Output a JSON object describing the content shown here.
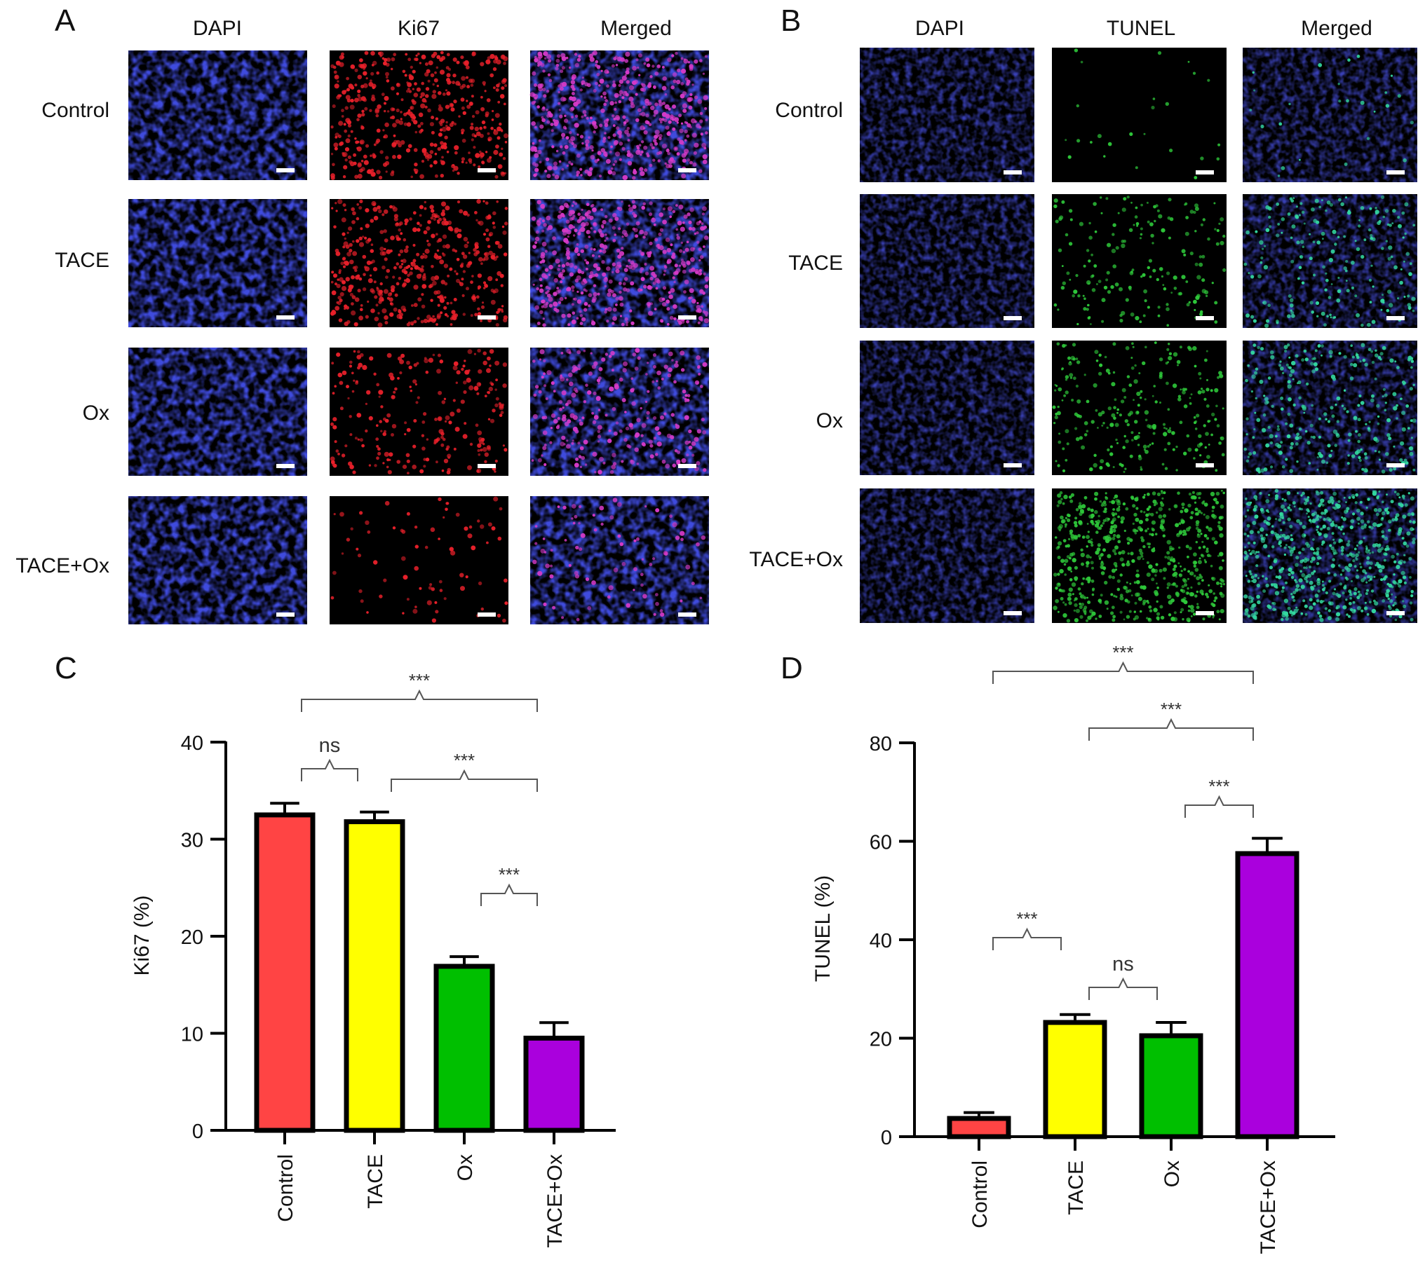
{
  "panels": {
    "A": {
      "letter": "A",
      "columns": [
        "DAPI",
        "Ki67",
        "Merged"
      ],
      "rows": [
        "Control",
        "TACE",
        "Ox",
        "TACE+Ox"
      ],
      "channel_colors": {
        "dapi": "#1c22b8",
        "ki67": "#e8202a",
        "merged_spot": "#d63ac8"
      }
    },
    "B": {
      "letter": "B",
      "columns": [
        "DAPI",
        "TUNEL",
        "Merged"
      ],
      "rows": [
        "Control",
        "TACE",
        "Ox",
        "TACE+Ox"
      ],
      "channel_colors": {
        "dapi": "#1c22b8",
        "tunel": "#2ec83a",
        "merged_spot": "#33d8a0"
      }
    },
    "C": {
      "letter": "C"
    },
    "D": {
      "letter": "D"
    }
  },
  "chart_data": [
    {
      "panel": "C",
      "type": "bar",
      "categories": [
        "Control",
        "TACE",
        "Ox",
        "TACE+Ox"
      ],
      "values": [
        32.5,
        31.8,
        16.9,
        9.5
      ],
      "errors": [
        1.2,
        1.0,
        1.0,
        1.6
      ],
      "colors": [
        "#ff4444",
        "#ffff00",
        "#00bf00",
        "#aa00dd"
      ],
      "ylabel": "Ki67 (%)",
      "xlabel": "",
      "ylim": [
        0,
        40
      ],
      "yticks": [
        0,
        10,
        20,
        30,
        40
      ],
      "grid": false,
      "significance": [
        {
          "from": "Control",
          "to": "TACE",
          "label": "ns",
          "level": 1
        },
        {
          "from": "TACE",
          "to": "TACE+Ox",
          "label": "***",
          "level": 1
        },
        {
          "from": "Ox",
          "to": "TACE+Ox",
          "label": "***",
          "level": 0
        },
        {
          "from": "Control",
          "to": "TACE+Ox",
          "label": "***",
          "level": 2
        }
      ]
    },
    {
      "panel": "D",
      "type": "bar",
      "categories": [
        "Control",
        "TACE",
        "Ox",
        "TACE+Ox"
      ],
      "values": [
        3.7,
        23.2,
        20.5,
        57.5
      ],
      "errors": [
        1.2,
        1.6,
        2.7,
        3.1
      ],
      "colors": [
        "#ff4444",
        "#ffff00",
        "#00bf00",
        "#aa00dd"
      ],
      "ylabel": "TUNEL (%)",
      "xlabel": "",
      "ylim": [
        0,
        80
      ],
      "yticks": [
        0,
        20,
        40,
        60,
        80
      ],
      "grid": false,
      "significance": [
        {
          "from": "Control",
          "to": "TACE",
          "label": "***",
          "level": 0
        },
        {
          "from": "TACE",
          "to": "Ox",
          "label": "ns",
          "level": 0
        },
        {
          "from": "Ox",
          "to": "TACE+Ox",
          "label": "***",
          "level": 1
        },
        {
          "from": "TACE",
          "to": "TACE+Ox",
          "label": "***",
          "level": 2
        },
        {
          "from": "Control",
          "to": "TACE+Ox",
          "label": "***",
          "level": 3
        }
      ]
    }
  ]
}
